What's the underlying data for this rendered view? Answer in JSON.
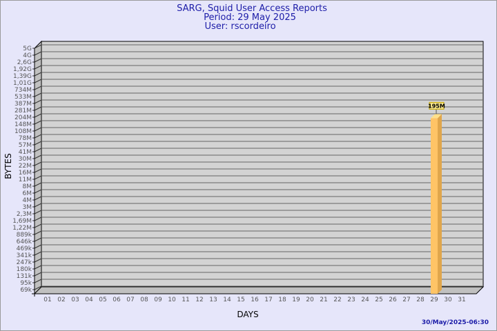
{
  "chart_data": {
    "type": "bar",
    "title": "SARG, Squid User Access Reports",
    "subtitle": [
      "Period: 29 May 2025",
      "User: rscordeiro"
    ],
    "xlabel": "DAYS",
    "ylabel": "BYTES",
    "yscale": "log",
    "y_ticks": [
      "5G",
      "4G",
      "2,6G",
      "1,92G",
      "1,39G",
      "1,01G",
      "734M",
      "533M",
      "387M",
      "281M",
      "204M",
      "148M",
      "108M",
      "78M",
      "57M",
      "41M",
      "30M",
      "22M",
      "16M",
      "11M",
      "8M",
      "6M",
      "4M",
      "3M",
      "2,3M",
      "1,69M",
      "1,22M",
      "889k",
      "646k",
      "469k",
      "341k",
      "247k",
      "180k",
      "131k",
      "95k",
      "69k"
    ],
    "categories": [
      "01",
      "02",
      "03",
      "04",
      "05",
      "06",
      "07",
      "08",
      "09",
      "10",
      "11",
      "12",
      "13",
      "14",
      "15",
      "16",
      "17",
      "18",
      "19",
      "20",
      "21",
      "22",
      "23",
      "24",
      "25",
      "26",
      "27",
      "28",
      "29",
      "30",
      "31"
    ],
    "values": [
      null,
      null,
      null,
      null,
      null,
      null,
      null,
      null,
      null,
      null,
      null,
      null,
      null,
      null,
      null,
      null,
      null,
      null,
      null,
      null,
      null,
      null,
      null,
      null,
      null,
      null,
      null,
      null,
      "195M",
      null,
      null
    ],
    "data_labels": {
      "29": "195M"
    },
    "grid": true,
    "colors": {
      "bar": "#ffc466",
      "bar_side": "#e0a64c",
      "bar_top": "#ffe08a",
      "wall": "#d3d3d3",
      "background": "#e6e6fa",
      "title": "#1c1ca8"
    },
    "timestamp": "30/May/2025-06:30"
  }
}
